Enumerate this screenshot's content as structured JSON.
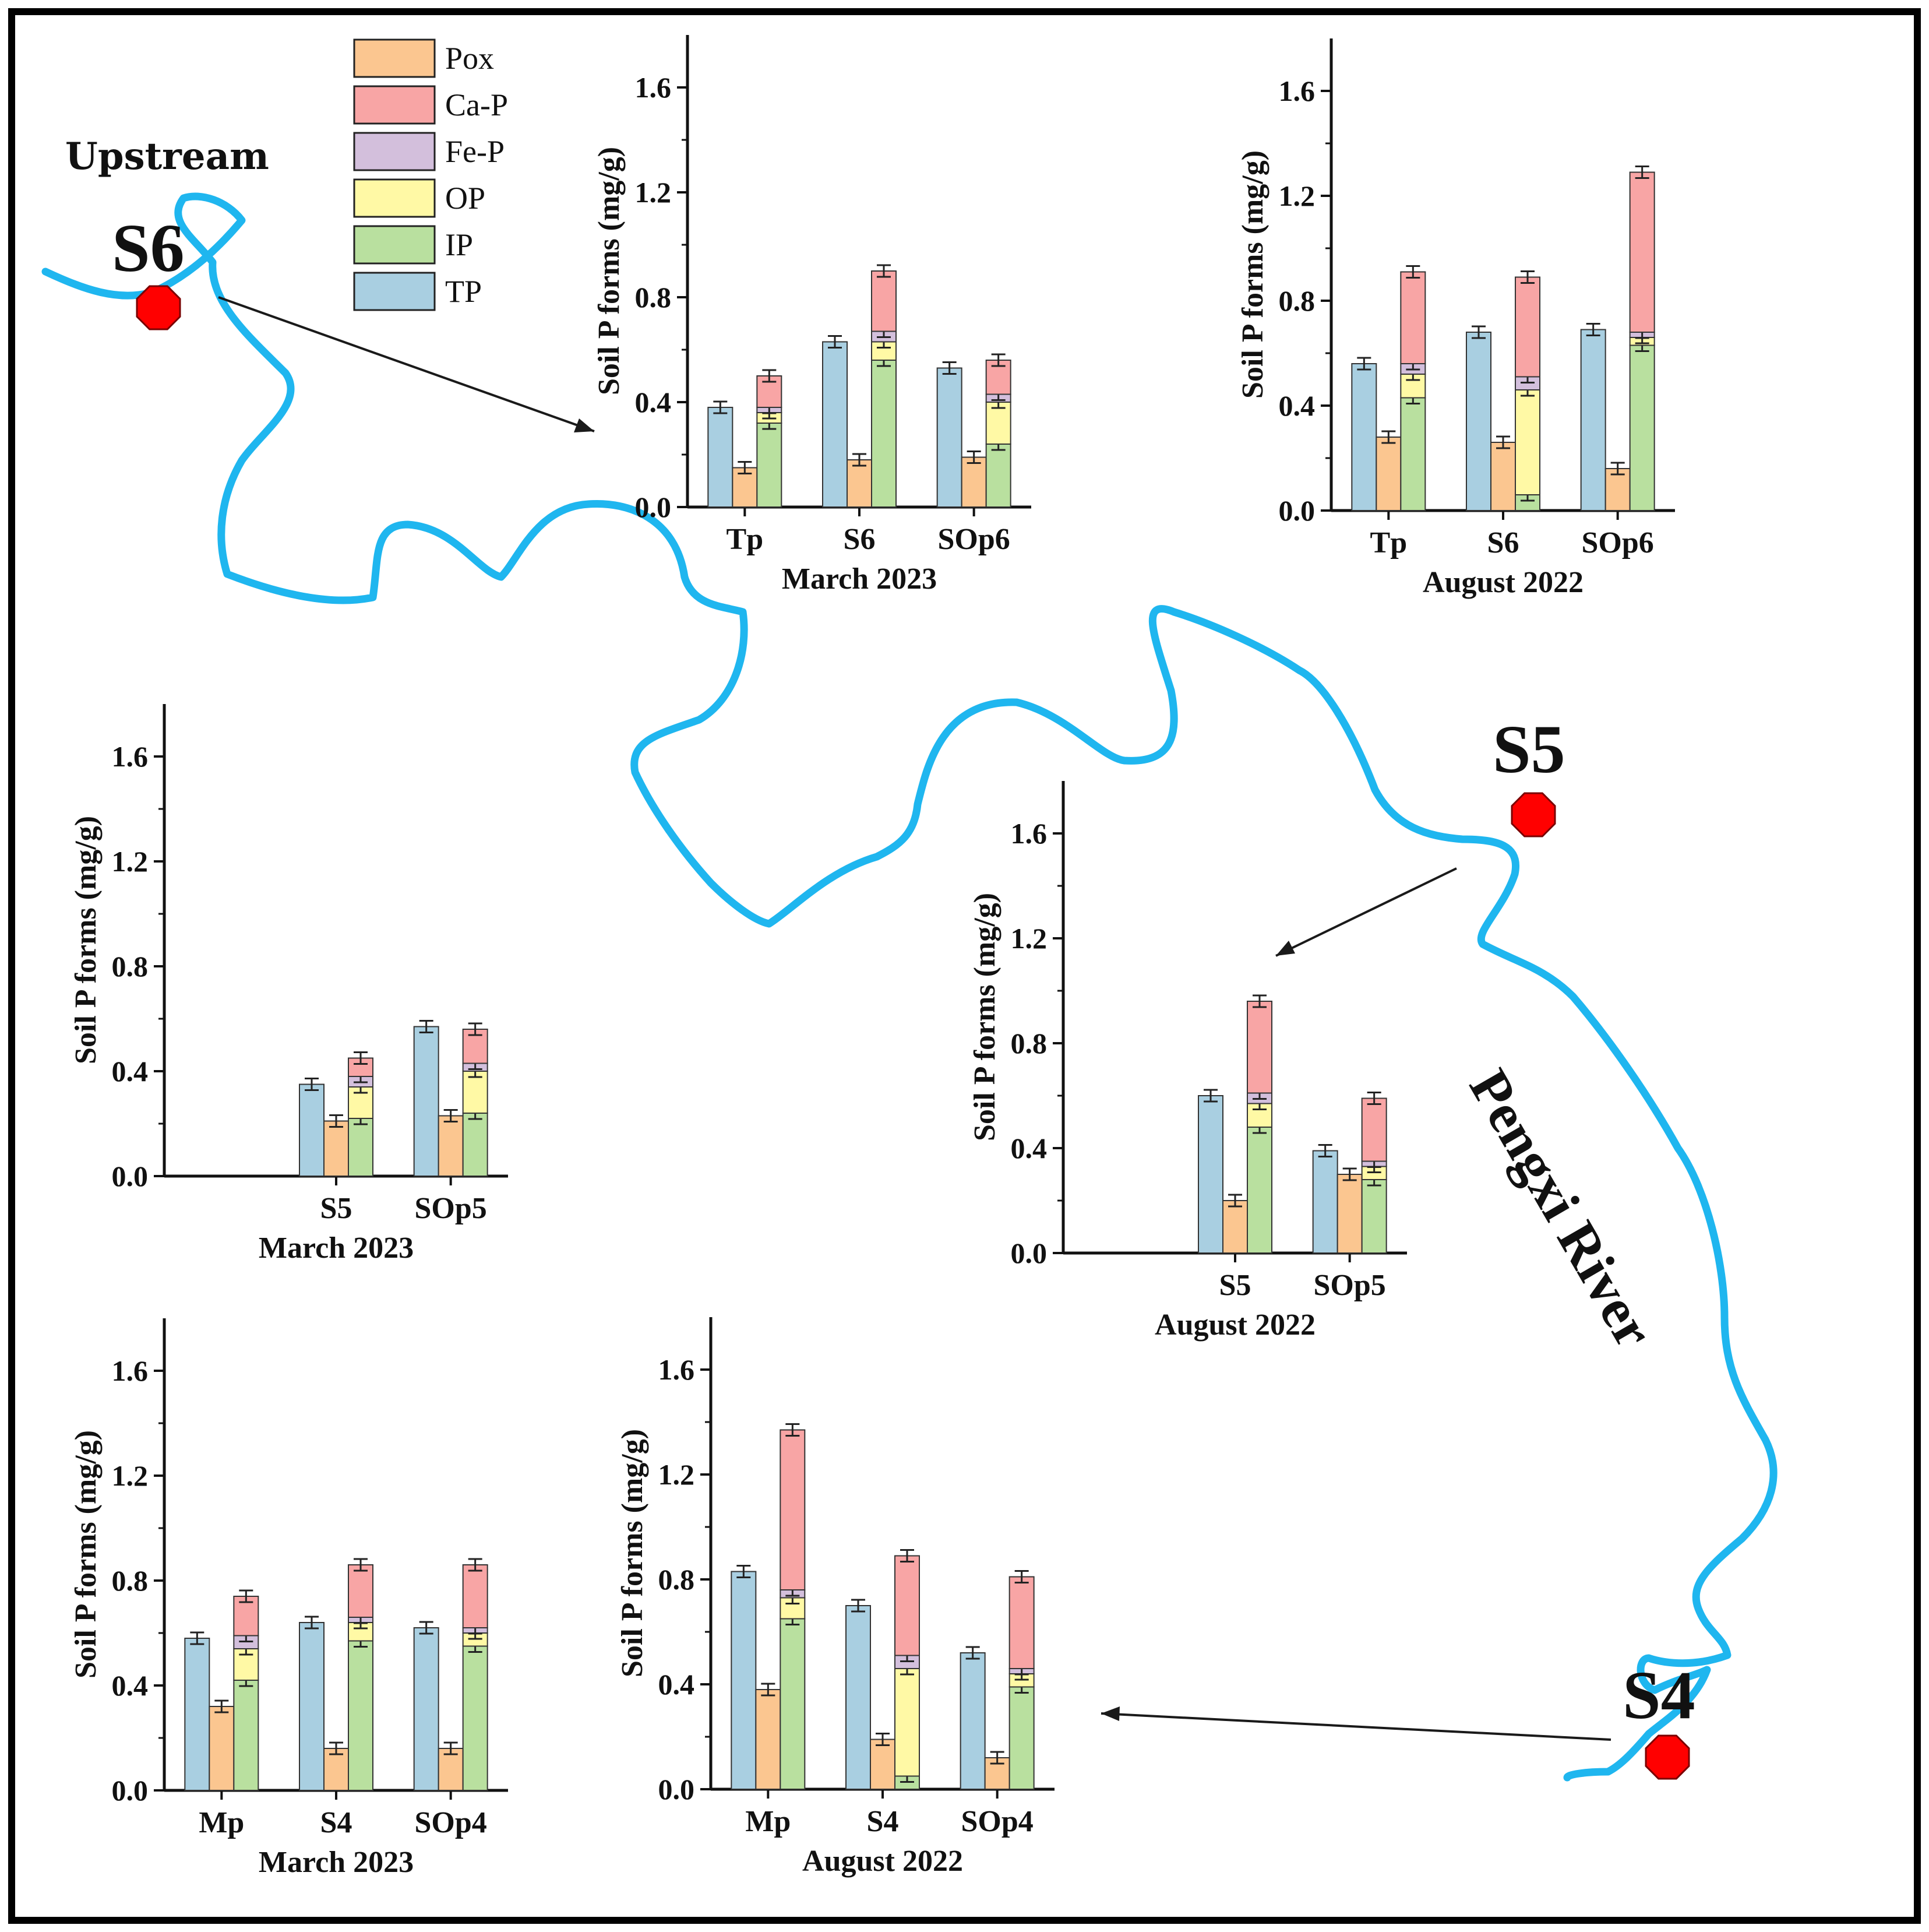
{
  "colors": {
    "TP": "#a9cfe1",
    "Pox": "#fbc690",
    "IP": "#b9e09f",
    "OP": "#fff9a5",
    "Fe-P": "#d3bfdc",
    "Ca-P": "#f8a5a5",
    "river": "#1fb6ef",
    "site": "#ff0000"
  },
  "map": {
    "upstream_label": "Upstream",
    "river_label": "Pengxi River",
    "sites": [
      "S6",
      "S5",
      "S4"
    ]
  },
  "legend": [
    "Pox",
    "Ca-P",
    "Fe-P",
    "OP",
    "IP",
    "TP"
  ],
  "chart_data": [
    {
      "type": "bar",
      "stacked_groups": true,
      "title": "March 2023",
      "ylabel": "Soil P forms (mg/g)",
      "ylim": [
        0,
        1.8
      ],
      "yticks": [
        "0.0",
        "0.4",
        "0.8",
        "1.2",
        "1.6"
      ],
      "categories": [
        "Tp",
        "S6",
        "SOp6"
      ],
      "series": [
        {
          "name": "TP",
          "values": [
            0.38,
            0.63,
            0.53
          ]
        },
        {
          "name": "Pox",
          "values": [
            0.15,
            0.18,
            0.19
          ]
        },
        {
          "name": "IP",
          "values": [
            0.32,
            0.56,
            0.24
          ]
        },
        {
          "name": "OP",
          "values": [
            0.04,
            0.07,
            0.16
          ]
        },
        {
          "name": "Fe-P",
          "values": [
            0.02,
            0.04,
            0.03
          ]
        },
        {
          "name": "Ca-P",
          "values": [
            0.12,
            0.23,
            0.13
          ]
        }
      ]
    },
    {
      "type": "bar",
      "stacked_groups": true,
      "title": "August 2022",
      "ylabel": "Soil P forms (mg/g)",
      "ylim": [
        0,
        1.8
      ],
      "yticks": [
        "0.0",
        "0.4",
        "0.8",
        "1.2",
        "1.6"
      ],
      "categories": [
        "Tp",
        "S6",
        "SOp6"
      ],
      "series": [
        {
          "name": "TP",
          "values": [
            0.56,
            0.68,
            0.69
          ]
        },
        {
          "name": "Pox",
          "values": [
            0.28,
            0.26,
            0.16
          ]
        },
        {
          "name": "IP",
          "values": [
            0.43,
            0.06,
            0.63
          ]
        },
        {
          "name": "OP",
          "values": [
            0.09,
            0.4,
            0.03
          ]
        },
        {
          "name": "Fe-P",
          "values": [
            0.04,
            0.05,
            0.02
          ]
        },
        {
          "name": "Ca-P",
          "values": [
            0.35,
            0.38,
            0.61
          ]
        }
      ]
    },
    {
      "type": "bar",
      "stacked_groups": true,
      "title": "March 2023",
      "ylabel": "Soil P forms (mg/g)",
      "ylim": [
        0,
        1.8
      ],
      "yticks": [
        "0.0",
        "0.4",
        "0.8",
        "1.2",
        "1.6"
      ],
      "categories": [
        "",
        "S5",
        "SOp5"
      ],
      "series": [
        {
          "name": "TP",
          "values": [
            null,
            0.35,
            0.57
          ]
        },
        {
          "name": "Pox",
          "values": [
            null,
            0.21,
            0.23
          ]
        },
        {
          "name": "IP",
          "values": [
            null,
            0.22,
            0.24
          ]
        },
        {
          "name": "OP",
          "values": [
            null,
            0.12,
            0.16
          ]
        },
        {
          "name": "Fe-P",
          "values": [
            null,
            0.04,
            0.03
          ]
        },
        {
          "name": "Ca-P",
          "values": [
            null,
            0.07,
            0.13
          ]
        }
      ]
    },
    {
      "type": "bar",
      "stacked_groups": true,
      "title": "August 2022",
      "ylabel": "Soil P forms (mg/g)",
      "ylim": [
        0,
        1.8
      ],
      "yticks": [
        "0.0",
        "0.4",
        "0.8",
        "1.2",
        "1.6"
      ],
      "categories": [
        "",
        "S5",
        "SOp5"
      ],
      "series": [
        {
          "name": "TP",
          "values": [
            null,
            0.6,
            0.39
          ]
        },
        {
          "name": "Pox",
          "values": [
            null,
            0.2,
            0.3
          ]
        },
        {
          "name": "IP",
          "values": [
            null,
            0.48,
            0.28
          ]
        },
        {
          "name": "OP",
          "values": [
            null,
            0.09,
            0.05
          ]
        },
        {
          "name": "Fe-P",
          "values": [
            null,
            0.04,
            0.02
          ]
        },
        {
          "name": "Ca-P",
          "values": [
            null,
            0.35,
            0.24
          ]
        }
      ]
    },
    {
      "type": "bar",
      "stacked_groups": true,
      "title": "March 2023",
      "ylabel": "Soil P forms (mg/g)",
      "ylim": [
        0,
        1.8
      ],
      "yticks": [
        "0.0",
        "0.4",
        "0.8",
        "1.2",
        "1.6"
      ],
      "categories": [
        "Mp",
        "S4",
        "SOp4"
      ],
      "series": [
        {
          "name": "TP",
          "values": [
            0.58,
            0.64,
            0.62
          ]
        },
        {
          "name": "Pox",
          "values": [
            0.32,
            0.16,
            0.16
          ]
        },
        {
          "name": "IP",
          "values": [
            0.42,
            0.57,
            0.55
          ]
        },
        {
          "name": "OP",
          "values": [
            0.12,
            0.07,
            0.05
          ]
        },
        {
          "name": "Fe-P",
          "values": [
            0.05,
            0.02,
            0.02
          ]
        },
        {
          "name": "Ca-P",
          "values": [
            0.15,
            0.2,
            0.24
          ]
        }
      ]
    },
    {
      "type": "bar",
      "stacked_groups": true,
      "title": "August 2022",
      "ylabel": "Soil P forms (mg/g)",
      "ylim": [
        0,
        1.8
      ],
      "yticks": [
        "0.0",
        "0.4",
        "0.8",
        "1.2",
        "1.6"
      ],
      "categories": [
        "Mp",
        "S4",
        "SOp4"
      ],
      "series": [
        {
          "name": "TP",
          "values": [
            0.83,
            0.7,
            0.52
          ]
        },
        {
          "name": "Pox",
          "values": [
            0.38,
            0.19,
            0.12
          ]
        },
        {
          "name": "IP",
          "values": [
            0.65,
            0.05,
            0.39
          ]
        },
        {
          "name": "OP",
          "values": [
            0.08,
            0.41,
            0.05
          ]
        },
        {
          "name": "Fe-P",
          "values": [
            0.03,
            0.05,
            0.02
          ]
        },
        {
          "name": "Ca-P",
          "values": [
            0.61,
            0.38,
            0.35
          ]
        }
      ]
    }
  ]
}
